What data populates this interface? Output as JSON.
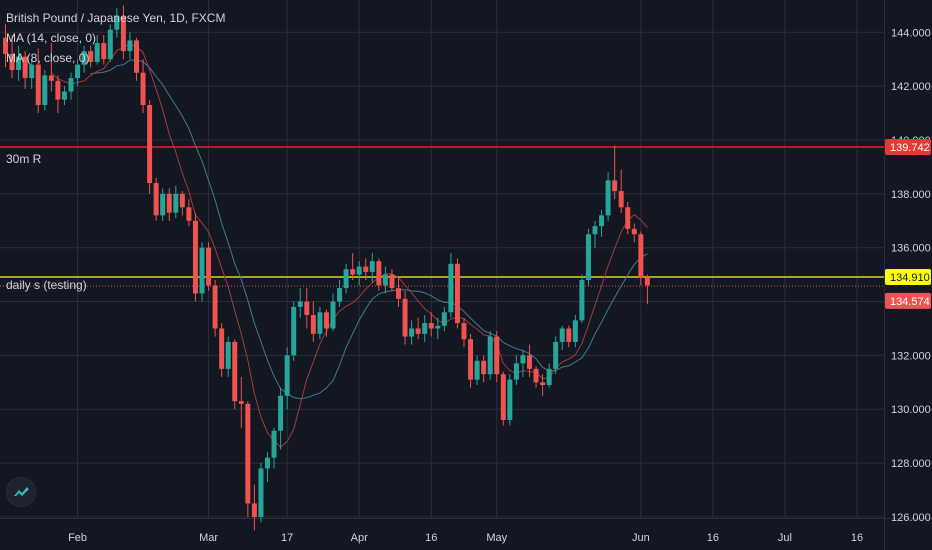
{
  "header": {
    "title": "British Pound / Japanese Yen, 1D, FXCM",
    "indicators": [
      "MA (14, close, 0)",
      "MA (8, close, 0)"
    ]
  },
  "lines": [
    {
      "label": "30m R",
      "price": 139.742,
      "price_label": "139.742",
      "color": "#b71c1c",
      "tag_color": "#e53935"
    },
    {
      "label": "daily s (testing)",
      "price": 134.91,
      "price_label": "134.910",
      "color": "#a8a61a",
      "tag_color": "#ffff00"
    }
  ],
  "last_price": {
    "price": 134.574,
    "label": "134.574",
    "color": "#ef5350"
  },
  "colors": {
    "background": "#131722",
    "grid": "#2a2e39",
    "up": "#26a69a",
    "down": "#ef5350",
    "ma14": "#3c7b8e",
    "ma8": "#a33a3a",
    "axis_text": "#d1d4dc"
  },
  "icons": {
    "logo": "tradingview-logo-icon"
  },
  "chart_data": {
    "type": "candlestick",
    "title": "British Pound / Japanese Yen, 1D, FXCM",
    "y_ticks": [
      "144.000",
      "142.000",
      "140.000",
      "138.000",
      "136.000",
      "134.000",
      "132.000",
      "130.000",
      "128.000",
      "126.000"
    ],
    "ylim": [
      125.7,
      145.2
    ],
    "x_ticks": [
      {
        "label": "Feb",
        "index": 11
      },
      {
        "label": "Mar",
        "index": 31
      },
      {
        "label": "17",
        "index": 43
      },
      {
        "label": "Apr",
        "index": 54
      },
      {
        "label": "16",
        "index": 65
      },
      {
        "label": "May",
        "index": 75
      },
      {
        "label": "Jun",
        "index": 97
      },
      {
        "label": "16",
        "index": 108
      },
      {
        "label": "Jul",
        "index": 119
      },
      {
        "label": "16",
        "index": 130
      }
    ],
    "candles": [
      [
        143.8,
        144.3,
        142.7,
        143.2
      ],
      [
        143.2,
        143.9,
        142.3,
        142.6
      ],
      [
        142.6,
        143.5,
        142.2,
        143.1
      ],
      [
        143.1,
        143.3,
        141.9,
        142.3
      ],
      [
        142.3,
        143.0,
        141.9,
        142.8
      ],
      [
        142.8,
        143.4,
        141.0,
        141.3
      ],
      [
        141.3,
        142.6,
        141.1,
        142.4
      ],
      [
        142.4,
        143.6,
        141.8,
        142.2
      ],
      [
        142.2,
        142.4,
        141.0,
        141.5
      ],
      [
        141.5,
        142.0,
        141.3,
        141.8
      ],
      [
        141.8,
        142.5,
        141.5,
        142.3
      ],
      [
        142.3,
        143.0,
        142.0,
        142.8
      ],
      [
        142.8,
        143.5,
        142.5,
        143.3
      ],
      [
        143.3,
        143.5,
        142.7,
        142.9
      ],
      [
        142.9,
        143.9,
        142.8,
        143.6
      ],
      [
        143.6,
        143.9,
        142.8,
        143.0
      ],
      [
        143.0,
        144.3,
        142.9,
        144.1
      ],
      [
        144.1,
        144.9,
        143.8,
        144.6
      ],
      [
        144.6,
        145.0,
        143.0,
        143.3
      ],
      [
        143.3,
        144.0,
        143.0,
        143.7
      ],
      [
        143.7,
        143.8,
        142.2,
        142.5
      ],
      [
        142.5,
        143.0,
        141.0,
        141.3
      ],
      [
        141.3,
        141.5,
        138.0,
        138.4
      ],
      [
        138.4,
        138.6,
        137.0,
        137.2
      ],
      [
        137.2,
        138.2,
        137.0,
        138.0
      ],
      [
        138.0,
        138.2,
        137.0,
        137.3
      ],
      [
        137.3,
        138.3,
        137.1,
        138.0
      ],
      [
        138.0,
        138.1,
        137.2,
        137.5
      ],
      [
        137.5,
        137.8,
        136.8,
        137.0
      ],
      [
        137.0,
        137.3,
        134.0,
        134.3
      ],
      [
        134.3,
        136.2,
        134.0,
        136.0
      ],
      [
        136.0,
        136.2,
        134.4,
        134.6
      ],
      [
        134.6,
        134.8,
        132.7,
        133.0
      ],
      [
        133.0,
        133.2,
        131.2,
        131.5
      ],
      [
        131.5,
        132.7,
        131.2,
        132.5
      ],
      [
        132.5,
        132.6,
        130.0,
        130.3
      ],
      [
        130.3,
        131.2,
        129.3,
        130.2
      ],
      [
        130.2,
        130.3,
        126.0,
        126.5
      ],
      [
        126.5,
        127.2,
        125.5,
        126.0
      ],
      [
        126.0,
        128.0,
        125.8,
        127.8
      ],
      [
        127.8,
        128.4,
        127.3,
        128.2
      ],
      [
        128.2,
        129.3,
        127.8,
        129.2
      ],
      [
        129.2,
        130.8,
        128.5,
        130.5
      ],
      [
        130.5,
        132.3,
        130.0,
        132.0
      ],
      [
        132.0,
        134.0,
        131.8,
        133.8
      ],
      [
        133.8,
        134.5,
        133.4,
        134.0
      ],
      [
        134.0,
        134.5,
        133.0,
        133.5
      ],
      [
        133.5,
        134.0,
        132.5,
        132.8
      ],
      [
        132.8,
        133.8,
        132.6,
        133.6
      ],
      [
        133.6,
        133.7,
        132.7,
        133.0
      ],
      [
        133.0,
        134.3,
        132.9,
        134.0
      ],
      [
        134.0,
        134.8,
        133.8,
        134.5
      ],
      [
        134.5,
        135.4,
        134.3,
        135.2
      ],
      [
        135.2,
        135.8,
        134.8,
        135.0
      ],
      [
        135.0,
        135.5,
        134.6,
        135.3
      ],
      [
        135.3,
        135.6,
        134.8,
        135.1
      ],
      [
        135.1,
        135.8,
        134.7,
        135.5
      ],
      [
        135.5,
        135.6,
        134.4,
        134.6
      ],
      [
        134.6,
        135.3,
        134.3,
        135.0
      ],
      [
        135.0,
        135.2,
        134.4,
        134.5
      ],
      [
        134.5,
        134.9,
        133.8,
        134.1
      ],
      [
        134.1,
        134.4,
        132.4,
        132.7
      ],
      [
        132.7,
        133.3,
        132.4,
        133.0
      ],
      [
        133.0,
        133.4,
        132.6,
        132.8
      ],
      [
        132.8,
        133.5,
        132.5,
        133.2
      ],
      [
        133.2,
        133.6,
        132.7,
        133.0
      ],
      [
        133.0,
        133.4,
        132.6,
        133.1
      ],
      [
        133.1,
        133.8,
        132.9,
        133.6
      ],
      [
        133.6,
        135.8,
        133.4,
        135.4
      ],
      [
        135.4,
        135.6,
        133.0,
        133.2
      ],
      [
        133.2,
        133.4,
        132.3,
        132.6
      ],
      [
        132.6,
        132.8,
        130.8,
        131.1
      ],
      [
        131.1,
        132.0,
        130.9,
        131.8
      ],
      [
        131.8,
        132.0,
        131.0,
        131.3
      ],
      [
        131.3,
        132.9,
        131.1,
        132.7
      ],
      [
        132.7,
        132.9,
        131.0,
        131.3
      ],
      [
        131.3,
        131.4,
        129.4,
        129.6
      ],
      [
        129.6,
        131.3,
        129.4,
        131.1
      ],
      [
        131.1,
        132.0,
        130.9,
        131.7
      ],
      [
        131.7,
        132.2,
        131.2,
        132.0
      ],
      [
        132.0,
        132.4,
        131.2,
        131.5
      ],
      [
        131.5,
        131.6,
        130.8,
        131.0
      ],
      [
        131.0,
        131.3,
        130.5,
        130.9
      ],
      [
        130.9,
        131.7,
        130.8,
        131.5
      ],
      [
        131.5,
        132.7,
        131.3,
        132.5
      ],
      [
        132.5,
        133.1,
        132.2,
        133.0
      ],
      [
        133.0,
        133.1,
        132.3,
        132.5
      ],
      [
        132.5,
        133.5,
        132.3,
        133.3
      ],
      [
        133.3,
        135.0,
        133.2,
        134.8
      ],
      [
        134.8,
        136.7,
        134.6,
        136.5
      ],
      [
        136.5,
        137.0,
        136.0,
        136.8
      ],
      [
        136.8,
        137.4,
        136.4,
        137.2
      ],
      [
        137.2,
        138.8,
        137.0,
        138.5
      ],
      [
        138.5,
        139.8,
        137.8,
        138.1
      ],
      [
        138.1,
        138.9,
        137.3,
        137.5
      ],
      [
        137.5,
        137.7,
        136.5,
        136.7
      ],
      [
        136.7,
        136.9,
        136.2,
        136.5
      ],
      [
        136.5,
        136.6,
        134.6,
        134.9
      ],
      [
        134.9,
        135.0,
        133.9,
        134.6
      ]
    ]
  }
}
